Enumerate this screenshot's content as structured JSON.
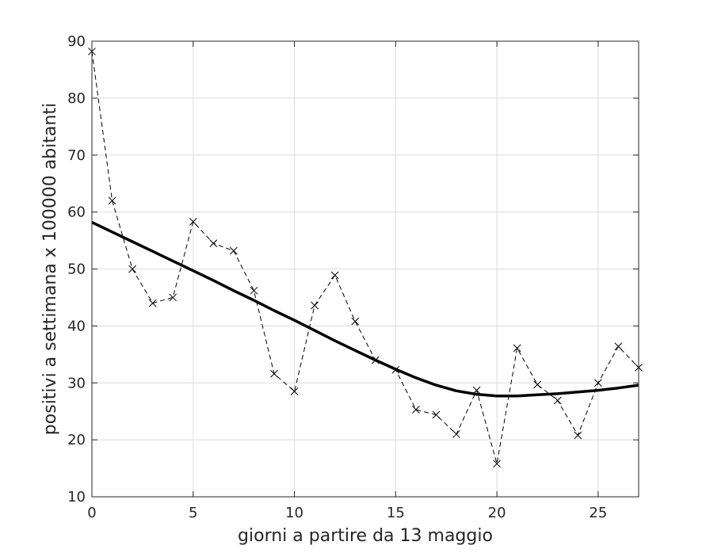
{
  "chart_data": {
    "type": "line",
    "title": "",
    "xlabel": "giorni a partire da 13 maggio",
    "ylabel": "positivi a settimana x 100000 abitanti",
    "xlim": [
      0,
      27
    ],
    "ylim": [
      10,
      90
    ],
    "xticks": [
      0,
      5,
      10,
      15,
      20,
      25
    ],
    "yticks": [
      10,
      20,
      30,
      40,
      50,
      60,
      70,
      80,
      90
    ],
    "grid": true,
    "legend": null,
    "series": [
      {
        "style": "dashed",
        "marker": "x",
        "color": "#000000",
        "x": [
          0,
          1,
          2,
          3,
          4,
          5,
          6,
          7,
          8,
          9,
          10,
          11,
          12,
          13,
          14,
          15,
          16,
          17,
          18,
          19,
          20,
          21,
          22,
          23,
          24,
          25,
          26,
          27
        ],
        "y": [
          88.2,
          62.0,
          50.0,
          44.0,
          45.0,
          58.3,
          54.5,
          53.2,
          46.2,
          31.6,
          28.5,
          43.6,
          48.9,
          40.8,
          34.0,
          32.3,
          25.3,
          24.4,
          21.0,
          28.7,
          15.8,
          36.1,
          29.7,
          26.9,
          20.8,
          30.0,
          36.4,
          32.7
        ]
      },
      {
        "style": "solid",
        "marker": "none",
        "color": "#000000",
        "line_width": "thick",
        "x": [
          0,
          1,
          2,
          3,
          4,
          5,
          6,
          7,
          8,
          9,
          10,
          11,
          12,
          13,
          14,
          15,
          16,
          17,
          18,
          19,
          20,
          21,
          22,
          23,
          24,
          25,
          26,
          27
        ],
        "y": [
          58.2,
          56.5,
          54.8,
          53.1,
          51.4,
          49.7,
          48.0,
          46.2,
          44.5,
          42.7,
          41.0,
          39.2,
          37.4,
          35.7,
          34.0,
          32.4,
          30.9,
          29.6,
          28.6,
          28.0,
          27.7,
          27.7,
          27.9,
          28.1,
          28.4,
          28.7,
          29.1,
          29.6
        ]
      }
    ]
  }
}
